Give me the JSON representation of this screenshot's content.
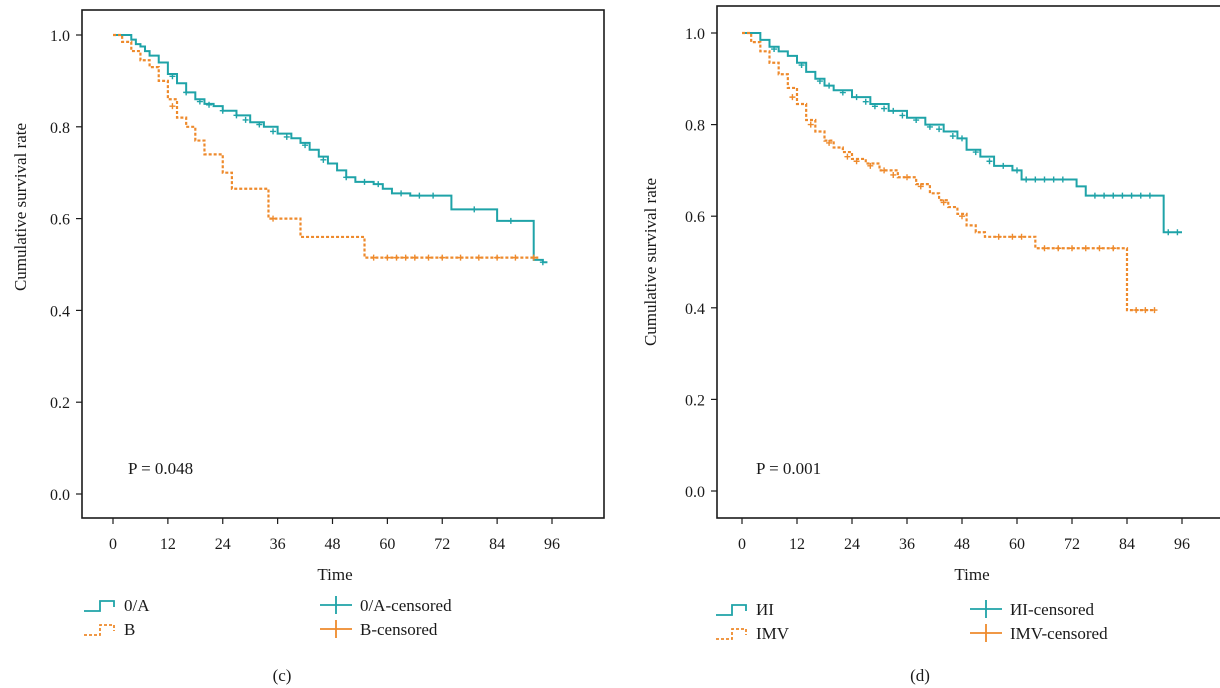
{
  "colors": {
    "teal": "#1fa3a8",
    "orange": "#ee8a2c",
    "axis": "#1a1a1a"
  },
  "chart_data": [
    {
      "type": "line",
      "subtype": "kaplan-meier",
      "panel_label": "(c)",
      "xlabel": "Time",
      "ylabel": "Cumulative survival rate",
      "xticks": [
        0,
        12,
        24,
        36,
        48,
        60,
        72,
        84,
        96
      ],
      "yticks": [
        0.0,
        0.2,
        0.4,
        0.6,
        0.8,
        1.0
      ],
      "xlim": [
        -4,
        106
      ],
      "ylim": [
        -0.05,
        1.05
      ],
      "annotation": "P = 0.048",
      "legend": {
        "placement": "bottom",
        "entries": [
          {
            "label": "0/A",
            "kind": "line",
            "series": 0
          },
          {
            "label": "0/A-censored",
            "kind": "censor",
            "series": 0
          },
          {
            "label": "B",
            "kind": "line",
            "series": 1
          },
          {
            "label": "B-censored",
            "kind": "censor",
            "series": 1
          }
        ]
      },
      "series": [
        {
          "color": "#1fa3a8",
          "dashed": false,
          "steps": [
            [
              0,
              1.0
            ],
            [
              3,
              1.0
            ],
            [
              4,
              0.99
            ],
            [
              5,
              0.98
            ],
            [
              6,
              0.975
            ],
            [
              7,
              0.965
            ],
            [
              8,
              0.955
            ],
            [
              10,
              0.94
            ],
            [
              12,
              0.915
            ],
            [
              14,
              0.895
            ],
            [
              16,
              0.875
            ],
            [
              18,
              0.86
            ],
            [
              20,
              0.85
            ],
            [
              22,
              0.845
            ],
            [
              24,
              0.835
            ],
            [
              27,
              0.825
            ],
            [
              30,
              0.81
            ],
            [
              33,
              0.8
            ],
            [
              36,
              0.785
            ],
            [
              39,
              0.775
            ],
            [
              41,
              0.765
            ],
            [
              43,
              0.75
            ],
            [
              45,
              0.735
            ],
            [
              47,
              0.72
            ],
            [
              49,
              0.705
            ],
            [
              51,
              0.69
            ],
            [
              53,
              0.68
            ],
            [
              57,
              0.675
            ],
            [
              59,
              0.665
            ],
            [
              61,
              0.655
            ],
            [
              65,
              0.65
            ],
            [
              74,
              0.62
            ],
            [
              84,
              0.595
            ],
            [
              92,
              0.51
            ],
            [
              94,
              0.505
            ]
          ],
          "censored": [
            [
              13,
              0.91
            ],
            [
              16,
              0.875
            ],
            [
              19,
              0.855
            ],
            [
              21,
              0.848
            ],
            [
              24,
              0.835
            ],
            [
              27,
              0.825
            ],
            [
              29,
              0.815
            ],
            [
              32,
              0.805
            ],
            [
              35,
              0.79
            ],
            [
              38,
              0.778
            ],
            [
              42,
              0.76
            ],
            [
              46,
              0.728
            ],
            [
              51,
              0.69
            ],
            [
              55,
              0.68
            ],
            [
              58,
              0.675
            ],
            [
              63,
              0.655
            ],
            [
              67,
              0.65
            ],
            [
              70,
              0.65
            ],
            [
              79,
              0.62
            ],
            [
              87,
              0.595
            ],
            [
              94,
              0.505
            ]
          ],
          "end_x": 95
        },
        {
          "color": "#ee8a2c",
          "dashed": true,
          "steps": [
            [
              0,
              1.0
            ],
            [
              2,
              0.985
            ],
            [
              4,
              0.965
            ],
            [
              6,
              0.945
            ],
            [
              8,
              0.93
            ],
            [
              10,
              0.9
            ],
            [
              12,
              0.86
            ],
            [
              14,
              0.82
            ],
            [
              16,
              0.8
            ],
            [
              18,
              0.77
            ],
            [
              20,
              0.74
            ],
            [
              24,
              0.7
            ],
            [
              26,
              0.665
            ],
            [
              34,
              0.6
            ],
            [
              41,
              0.56
            ],
            [
              55,
              0.515
            ]
          ],
          "censored": [
            [
              13,
              0.845
            ],
            [
              35,
              0.6
            ],
            [
              57,
              0.515
            ],
            [
              60,
              0.515
            ],
            [
              62,
              0.515
            ],
            [
              64,
              0.515
            ],
            [
              66,
              0.515
            ],
            [
              69,
              0.515
            ],
            [
              72,
              0.515
            ],
            [
              76,
              0.515
            ],
            [
              80,
              0.515
            ],
            [
              84,
              0.515
            ],
            [
              88,
              0.515
            ],
            [
              92,
              0.515
            ]
          ],
          "end_x": 93
        }
      ]
    },
    {
      "type": "line",
      "subtype": "kaplan-meier",
      "panel_label": "(d)",
      "xlabel": "Time",
      "ylabel": "Cumulative survival rate",
      "xticks": [
        0,
        12,
        24,
        36,
        48,
        60,
        72,
        84,
        96
      ],
      "yticks": [
        0.0,
        0.2,
        0.4,
        0.6,
        0.8,
        1.0
      ],
      "xlim": [
        -4,
        106
      ],
      "ylim": [
        -0.05,
        1.05
      ],
      "annotation": "P = 0.001",
      "legend": {
        "placement": "bottom",
        "entries": [
          {
            "label": "ИI",
            "kind": "line",
            "series": 0
          },
          {
            "label": "ИI-censored",
            "kind": "censor",
            "series": 0
          },
          {
            "label": "IMV",
            "kind": "line",
            "series": 1
          },
          {
            "label": "IMV-censored",
            "kind": "censor",
            "series": 1
          }
        ]
      },
      "series": [
        {
          "color": "#1fa3a8",
          "dashed": false,
          "steps": [
            [
              0,
              1.0
            ],
            [
              4,
              0.985
            ],
            [
              6,
              0.97
            ],
            [
              8,
              0.96
            ],
            [
              10,
              0.95
            ],
            [
              12,
              0.935
            ],
            [
              14,
              0.915
            ],
            [
              16,
              0.9
            ],
            [
              18,
              0.885
            ],
            [
              20,
              0.875
            ],
            [
              24,
              0.86
            ],
            [
              28,
              0.845
            ],
            [
              32,
              0.83
            ],
            [
              36,
              0.815
            ],
            [
              40,
              0.8
            ],
            [
              44,
              0.785
            ],
            [
              47,
              0.77
            ],
            [
              49,
              0.745
            ],
            [
              52,
              0.73
            ],
            [
              55,
              0.71
            ],
            [
              59,
              0.7
            ],
            [
              61,
              0.68
            ],
            [
              72,
              0.68
            ],
            [
              73,
              0.665
            ],
            [
              75,
              0.645
            ],
            [
              92,
              0.565
            ]
          ],
          "censored": [
            [
              7,
              0.965
            ],
            [
              13,
              0.93
            ],
            [
              17,
              0.895
            ],
            [
              19,
              0.885
            ],
            [
              22,
              0.87
            ],
            [
              25,
              0.86
            ],
            [
              27,
              0.85
            ],
            [
              29,
              0.84
            ],
            [
              31,
              0.835
            ],
            [
              33,
              0.83
            ],
            [
              35,
              0.82
            ],
            [
              38,
              0.81
            ],
            [
              41,
              0.795
            ],
            [
              43,
              0.79
            ],
            [
              46,
              0.775
            ],
            [
              48,
              0.77
            ],
            [
              51,
              0.74
            ],
            [
              54,
              0.72
            ],
            [
              57,
              0.71
            ],
            [
              60,
              0.7
            ],
            [
              62,
              0.68
            ],
            [
              64,
              0.68
            ],
            [
              66,
              0.68
            ],
            [
              68,
              0.68
            ],
            [
              70,
              0.68
            ],
            [
              77,
              0.645
            ],
            [
              79,
              0.645
            ],
            [
              81,
              0.645
            ],
            [
              83,
              0.645
            ],
            [
              85,
              0.645
            ],
            [
              87,
              0.645
            ],
            [
              89,
              0.645
            ],
            [
              93,
              0.565
            ],
            [
              95,
              0.565
            ]
          ],
          "end_x": 96
        },
        {
          "color": "#ee8a2c",
          "dashed": true,
          "steps": [
            [
              0,
              1.0
            ],
            [
              2,
              0.98
            ],
            [
              4,
              0.96
            ],
            [
              6,
              0.935
            ],
            [
              8,
              0.91
            ],
            [
              10,
              0.88
            ],
            [
              12,
              0.845
            ],
            [
              14,
              0.81
            ],
            [
              16,
              0.785
            ],
            [
              18,
              0.765
            ],
            [
              20,
              0.75
            ],
            [
              22,
              0.74
            ],
            [
              24,
              0.725
            ],
            [
              27,
              0.715
            ],
            [
              30,
              0.7
            ],
            [
              34,
              0.685
            ],
            [
              38,
              0.67
            ],
            [
              41,
              0.65
            ],
            [
              43,
              0.635
            ],
            [
              45,
              0.62
            ],
            [
              47,
              0.605
            ],
            [
              49,
              0.58
            ],
            [
              51,
              0.565
            ],
            [
              53,
              0.555
            ],
            [
              64,
              0.53
            ],
            [
              84,
              0.395
            ]
          ],
          "censored": [
            [
              11,
              0.86
            ],
            [
              15,
              0.8
            ],
            [
              19,
              0.76
            ],
            [
              23,
              0.73
            ],
            [
              25,
              0.72
            ],
            [
              28,
              0.71
            ],
            [
              31,
              0.7
            ],
            [
              33,
              0.69
            ],
            [
              36,
              0.685
            ],
            [
              39,
              0.665
            ],
            [
              44,
              0.63
            ],
            [
              48,
              0.6
            ],
            [
              56,
              0.555
            ],
            [
              59,
              0.555
            ],
            [
              61,
              0.555
            ],
            [
              66,
              0.53
            ],
            [
              69,
              0.53
            ],
            [
              72,
              0.53
            ],
            [
              75,
              0.53
            ],
            [
              78,
              0.53
            ],
            [
              81,
              0.53
            ],
            [
              86,
              0.395
            ],
            [
              88,
              0.395
            ],
            [
              90,
              0.395
            ]
          ],
          "end_x": 90
        }
      ]
    }
  ]
}
